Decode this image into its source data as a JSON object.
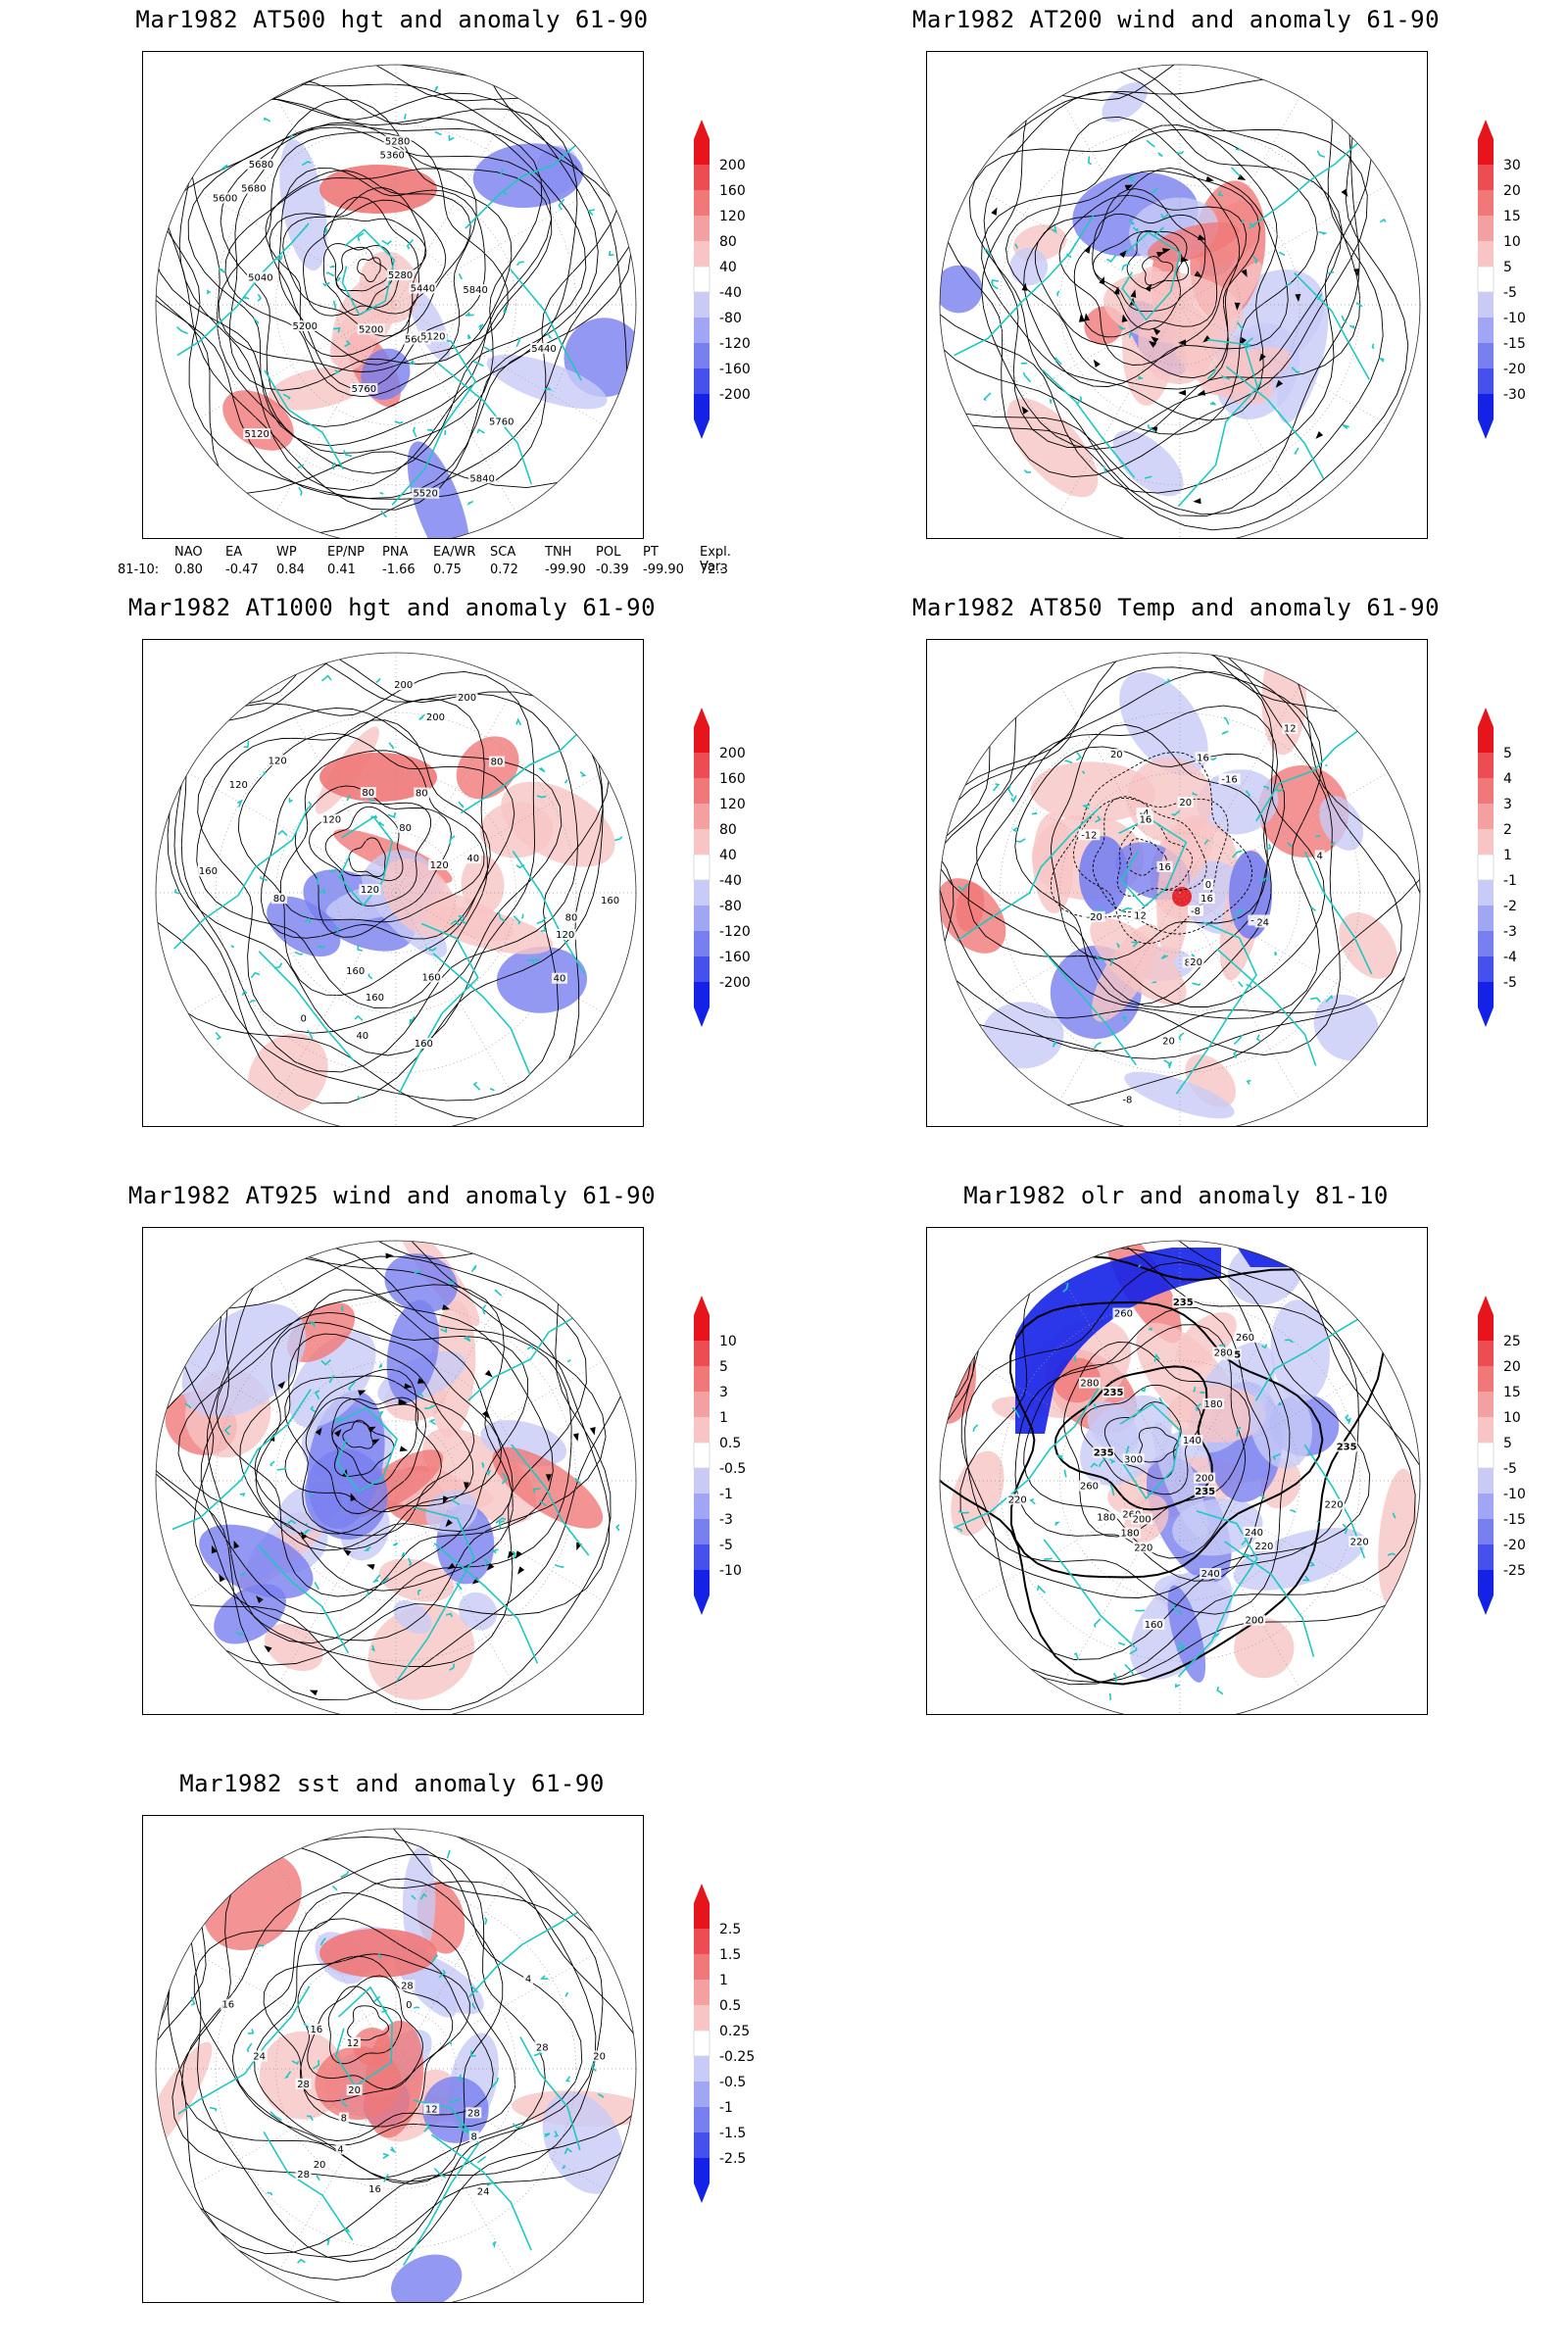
{
  "panels": [
    {
      "id": "p1",
      "title": "Mar1982 AT500 hgt and anomaly 61-90",
      "colorbar": [
        "200",
        "160",
        "120",
        "80",
        "40",
        "-40",
        "-80",
        "-120",
        "-160",
        "-200"
      ],
      "contour_labels": [
        "5840",
        "5760",
        "5680",
        "5600",
        "5440",
        "5280",
        "5200",
        "5040",
        "5120",
        "5120",
        "5200",
        "5280",
        "5360",
        "5440",
        "5520",
        "5600",
        "5680",
        "5760",
        "5840"
      ]
    },
    {
      "id": "p2",
      "title": "Mar1982 AT200 wind and anomaly 61-90",
      "colorbar": [
        "30",
        "20",
        "15",
        "10",
        "5",
        "-5",
        "-10",
        "-15",
        "-20",
        "-30"
      ],
      "contour_labels": []
    },
    {
      "id": "p3",
      "title": "Mar1982 AT1000 hgt and anomaly 61-90",
      "colorbar": [
        "200",
        "160",
        "120",
        "80",
        "40",
        "-40",
        "-80",
        "-120",
        "-160",
        "-200"
      ],
      "contour_labels": [
        "80",
        "80",
        "120",
        "160",
        "200",
        "160",
        "120",
        "80",
        "40",
        "120",
        "160",
        "200",
        "160",
        "120",
        "160",
        "200",
        "120",
        "160",
        "120",
        "80",
        "80",
        "40",
        "0",
        "40",
        "80"
      ]
    },
    {
      "id": "p4",
      "title": "Mar1982 AT850 Temp and anomaly 61-90",
      "colorbar": [
        "5",
        "4",
        "3",
        "2",
        "1",
        "-1",
        "-2",
        "-3",
        "-4",
        "-5"
      ],
      "contour_labels": [
        "16",
        "12",
        "8",
        "0",
        "-8",
        "-16",
        "16",
        "20",
        "-24",
        "-20",
        "-12",
        "-8",
        "-4",
        "4",
        "12",
        "16",
        "20",
        "24",
        "16",
        "20",
        "20"
      ]
    },
    {
      "id": "p5",
      "title": "Mar1982 AT925 wind and anomaly 61-90",
      "colorbar": [
        "10",
        "5",
        "3",
        "1",
        "0.5",
        "-0.5",
        "-1",
        "-3",
        "-5",
        "-10"
      ],
      "contour_labels": []
    },
    {
      "id": "p6",
      "title": "Mar1982 olr and anomaly 81-10",
      "colorbar": [
        "25",
        "20",
        "15",
        "10",
        "5",
        "-5",
        "-10",
        "-15",
        "-20",
        "-25"
      ],
      "contour_labels": [
        "235",
        "235",
        "220",
        "240",
        "260",
        "180",
        "200",
        "235",
        "260",
        "280",
        "220",
        "200",
        "180",
        "160",
        "140",
        "180",
        "200",
        "220",
        "235",
        "260",
        "280",
        "300",
        "235",
        "260",
        "220",
        "240",
        "235",
        "220"
      ]
    },
    {
      "id": "p7",
      "title": "Mar1982 sst and anomaly 61-90",
      "colorbar": [
        "2.5",
        "1.5",
        "1",
        "0.5",
        "0.25",
        "-0.25",
        "-0.5",
        "-1",
        "-1.5",
        "-2.5"
      ],
      "contour_labels": [
        "28",
        "28",
        "24",
        "20",
        "16",
        "12",
        "8",
        "4",
        "0",
        "28",
        "28",
        "20",
        "16",
        "12",
        "8",
        "4",
        "16",
        "20",
        "24",
        "28"
      ]
    }
  ],
  "teleconnection": {
    "headers": [
      "NAO",
      "EA",
      "WP",
      "EP/NP",
      "PNA",
      "EA/WR",
      "SCA",
      "TNH",
      "POL",
      "PT",
      "Expl. Var."
    ],
    "row_label": "81-10:",
    "values": [
      "0.80",
      "-0.47",
      "0.84",
      "0.41",
      "-1.66",
      "0.75",
      "0.72",
      "-99.90",
      "-0.39",
      "-99.90",
      "72.3"
    ]
  },
  "colors": {
    "anomaly_pos_strong": "#e8141c",
    "anomaly_pos_mid": "#f07878",
    "anomaly_pos_light": "#f8c4c4",
    "anomaly_neg_light": "#c8cbf6",
    "anomaly_neg_mid": "#7880f0",
    "anomaly_neg_strong": "#1422e8",
    "coastline": "#1ec8c0",
    "contour": "#000000",
    "grid": "#999999"
  }
}
